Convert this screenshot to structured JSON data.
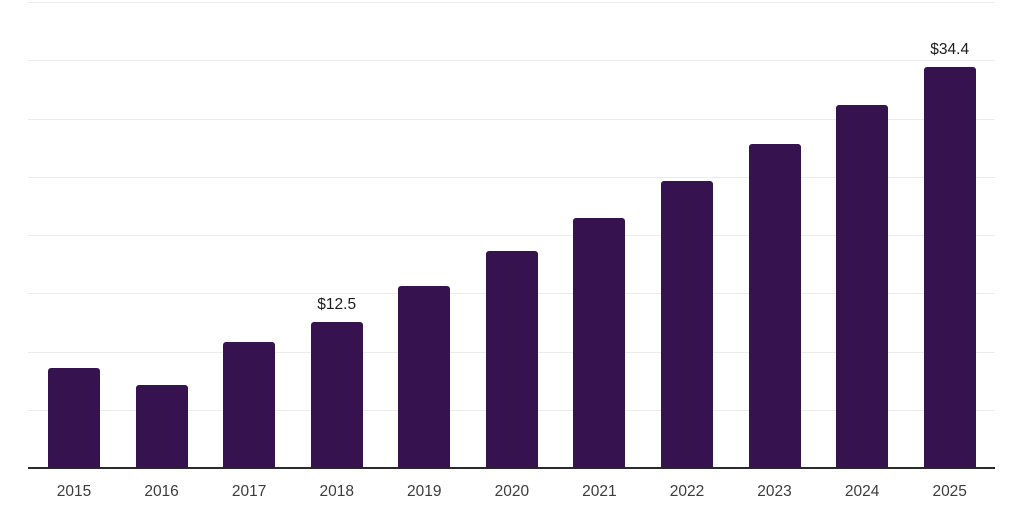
{
  "chart_data": {
    "type": "bar",
    "title": "",
    "xlabel": "",
    "ylabel": "",
    "categories": [
      "2015",
      "2016",
      "2017",
      "2018",
      "2019",
      "2020",
      "2021",
      "2022",
      "2023",
      "2024",
      "2025"
    ],
    "values": [
      8.6,
      7.1,
      10.8,
      12.5,
      15.6,
      18.6,
      21.5,
      24.6,
      27.8,
      31.2,
      34.4
    ],
    "data_labels": [
      {
        "category": "2018",
        "text": "$12.5"
      },
      {
        "category": "2025",
        "text": "$34.4"
      }
    ],
    "ylim": [
      0,
      40
    ],
    "grid": true,
    "gridline_step": 5,
    "y_axis_tick_labels_visible": false,
    "legend": false,
    "colors": {
      "bar": "#36134e",
      "gridline": "#ececec",
      "axis_line": "#2b2b2b",
      "tick_label": "#3c3c3c",
      "data_label": "#1c1c1c",
      "background": "#ffffff"
    }
  }
}
